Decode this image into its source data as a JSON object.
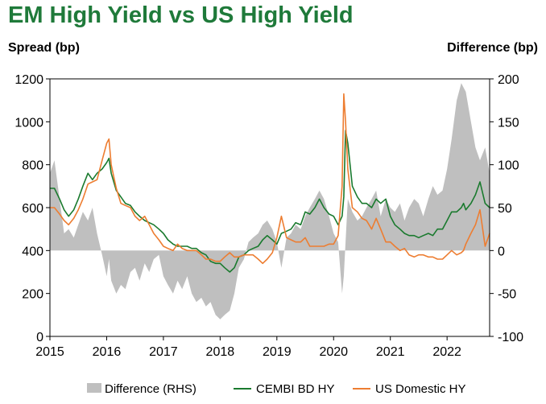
{
  "chart_data": {
    "type": "line",
    "title": "EM High Yield vs US High Yield",
    "ylabel_left": "Spread (bp)",
    "ylabel_right": "Difference (bp)",
    "ylim_left": [
      0,
      1200
    ],
    "ylim_right": [
      -100,
      200
    ],
    "xlim": [
      2015.0,
      2022.75
    ],
    "x_ticks": [
      "2015",
      "2016",
      "2017",
      "2018",
      "2019",
      "2020",
      "2021",
      "2022"
    ],
    "y_ticks_left": [
      "0",
      "200",
      "400",
      "600",
      "800",
      "1000",
      "1200"
    ],
    "y_ticks_right": [
      "-100",
      "-50",
      "0",
      "50",
      "100",
      "150",
      "200"
    ],
    "legend_position": "bottom",
    "series": [
      {
        "name": "Difference (RHS)",
        "axis": "right",
        "kind": "area",
        "color": "#bfbfbf",
        "x": [
          2015.0,
          2015.08,
          2015.17,
          2015.25,
          2015.33,
          2015.42,
          2015.5,
          2015.58,
          2015.67,
          2015.75,
          2015.83,
          2015.92,
          2016.0,
          2016.04,
          2016.08,
          2016.17,
          2016.25,
          2016.33,
          2016.42,
          2016.5,
          2016.58,
          2016.67,
          2016.75,
          2016.83,
          2016.92,
          2017.0,
          2017.08,
          2017.17,
          2017.25,
          2017.33,
          2017.42,
          2017.5,
          2017.58,
          2017.67,
          2017.75,
          2017.83,
          2017.92,
          2018.0,
          2018.08,
          2018.17,
          2018.25,
          2018.33,
          2018.42,
          2018.5,
          2018.58,
          2018.67,
          2018.75,
          2018.83,
          2018.92,
          2019.0,
          2019.08,
          2019.17,
          2019.25,
          2019.33,
          2019.42,
          2019.5,
          2019.58,
          2019.67,
          2019.75,
          2019.83,
          2019.92,
          2020.0,
          2020.08,
          2020.15,
          2020.18,
          2020.21,
          2020.25,
          2020.33,
          2020.42,
          2020.5,
          2020.58,
          2020.67,
          2020.75,
          2020.83,
          2020.92,
          2021.0,
          2021.08,
          2021.17,
          2021.25,
          2021.33,
          2021.42,
          2021.5,
          2021.58,
          2021.67,
          2021.75,
          2021.83,
          2021.92,
          2022.0,
          2022.08,
          2022.17,
          2022.25,
          2022.29,
          2022.33,
          2022.42,
          2022.5,
          2022.58,
          2022.67,
          2022.75
        ],
        "values": [
          90,
          105,
          60,
          20,
          25,
          15,
          30,
          45,
          35,
          50,
          20,
          -5,
          -30,
          -10,
          -35,
          -50,
          -40,
          -45,
          -25,
          -20,
          -35,
          -15,
          -25,
          -10,
          -5,
          -30,
          -40,
          -50,
          -35,
          -45,
          -30,
          -50,
          -60,
          -55,
          -65,
          -60,
          -75,
          -80,
          -75,
          -70,
          -50,
          -20,
          -10,
          10,
          15,
          20,
          30,
          35,
          25,
          10,
          -20,
          15,
          20,
          30,
          25,
          40,
          50,
          60,
          70,
          60,
          40,
          20,
          10,
          -50,
          -30,
          10,
          60,
          45,
          35,
          40,
          50,
          60,
          70,
          40,
          60,
          50,
          45,
          55,
          35,
          50,
          60,
          55,
          40,
          60,
          75,
          65,
          70,
          95,
          130,
          175,
          195,
          190,
          185,
          150,
          120,
          105,
          120,
          90
        ]
      },
      {
        "name": "CEMBI BD HY",
        "axis": "left",
        "kind": "line",
        "color": "#1a7a2e",
        "x": [
          2015.0,
          2015.08,
          2015.17,
          2015.25,
          2015.33,
          2015.42,
          2015.5,
          2015.58,
          2015.67,
          2015.75,
          2015.83,
          2015.92,
          2016.0,
          2016.04,
          2016.08,
          2016.17,
          2016.25,
          2016.33,
          2016.42,
          2016.5,
          2016.58,
          2016.67,
          2016.75,
          2016.83,
          2016.92,
          2017.0,
          2017.08,
          2017.17,
          2017.25,
          2017.33,
          2017.42,
          2017.5,
          2017.58,
          2017.67,
          2017.75,
          2017.83,
          2017.92,
          2018.0,
          2018.08,
          2018.17,
          2018.25,
          2018.33,
          2018.42,
          2018.5,
          2018.58,
          2018.67,
          2018.75,
          2018.83,
          2018.92,
          2019.0,
          2019.08,
          2019.17,
          2019.25,
          2019.33,
          2019.42,
          2019.5,
          2019.58,
          2019.67,
          2019.75,
          2019.83,
          2019.92,
          2020.0,
          2020.08,
          2020.15,
          2020.18,
          2020.21,
          2020.25,
          2020.33,
          2020.42,
          2020.5,
          2020.58,
          2020.67,
          2020.75,
          2020.83,
          2020.92,
          2021.0,
          2021.08,
          2021.17,
          2021.25,
          2021.33,
          2021.42,
          2021.5,
          2021.58,
          2021.67,
          2021.75,
          2021.83,
          2021.92,
          2022.0,
          2022.08,
          2022.17,
          2022.25,
          2022.29,
          2022.33,
          2022.42,
          2022.5,
          2022.58,
          2022.67,
          2022.75
        ],
        "values": [
          690,
          690,
          640,
          590,
          560,
          590,
          640,
          700,
          760,
          730,
          760,
          780,
          810,
          830,
          760,
          680,
          650,
          620,
          610,
          580,
          560,
          540,
          530,
          520,
          500,
          480,
          450,
          430,
          420,
          420,
          420,
          410,
          410,
          390,
          380,
          350,
          340,
          340,
          320,
          300,
          320,
          370,
          380,
          400,
          410,
          420,
          450,
          470,
          450,
          430,
          480,
          490,
          500,
          530,
          520,
          580,
          570,
          600,
          640,
          600,
          570,
          560,
          520,
          560,
          650,
          960,
          900,
          700,
          650,
          620,
          620,
          600,
          640,
          620,
          640,
          560,
          520,
          500,
          480,
          470,
          470,
          460,
          470,
          480,
          470,
          500,
          500,
          540,
          580,
          580,
          600,
          620,
          590,
          620,
          660,
          720,
          620,
          600
        ]
      },
      {
        "name": "US Domestic HY",
        "axis": "left",
        "kind": "line",
        "color": "#ed7d31",
        "x": [
          2015.0,
          2015.08,
          2015.17,
          2015.25,
          2015.33,
          2015.42,
          2015.5,
          2015.58,
          2015.67,
          2015.75,
          2015.83,
          2015.92,
          2016.0,
          2016.04,
          2016.08,
          2016.17,
          2016.25,
          2016.33,
          2016.42,
          2016.5,
          2016.58,
          2016.67,
          2016.75,
          2016.83,
          2016.92,
          2017.0,
          2017.08,
          2017.17,
          2017.25,
          2017.33,
          2017.42,
          2017.5,
          2017.58,
          2017.67,
          2017.75,
          2017.83,
          2017.92,
          2018.0,
          2018.08,
          2018.17,
          2018.25,
          2018.33,
          2018.42,
          2018.5,
          2018.58,
          2018.67,
          2018.75,
          2018.83,
          2018.92,
          2019.0,
          2019.08,
          2019.17,
          2019.25,
          2019.33,
          2019.42,
          2019.5,
          2019.58,
          2019.67,
          2019.75,
          2019.83,
          2019.92,
          2020.0,
          2020.08,
          2020.15,
          2020.18,
          2020.21,
          2020.25,
          2020.33,
          2020.42,
          2020.5,
          2020.58,
          2020.67,
          2020.75,
          2020.83,
          2020.92,
          2021.0,
          2021.08,
          2021.17,
          2021.25,
          2021.33,
          2021.42,
          2021.5,
          2021.58,
          2021.67,
          2021.75,
          2021.83,
          2021.92,
          2022.0,
          2022.08,
          2022.17,
          2022.25,
          2022.29,
          2022.33,
          2022.42,
          2022.5,
          2022.58,
          2022.67,
          2022.75
        ],
        "values": [
          600,
          600,
          570,
          540,
          520,
          550,
          590,
          640,
          710,
          720,
          730,
          820,
          900,
          920,
          800,
          690,
          620,
          610,
          600,
          560,
          540,
          560,
          520,
          480,
          450,
          420,
          410,
          400,
          430,
          410,
          400,
          400,
          400,
          380,
          360,
          360,
          350,
          350,
          370,
          390,
          370,
          370,
          380,
          380,
          380,
          360,
          340,
          360,
          390,
          460,
          560,
          460,
          450,
          440,
          440,
          460,
          420,
          420,
          420,
          420,
          430,
          430,
          470,
          700,
          1130,
          1000,
          780,
          600,
          580,
          550,
          540,
          500,
          550,
          500,
          440,
          440,
          420,
          400,
          410,
          380,
          370,
          380,
          380,
          370,
          370,
          360,
          360,
          380,
          400,
          380,
          390,
          400,
          430,
          480,
          520,
          590,
          420,
          480
        ]
      }
    ]
  }
}
